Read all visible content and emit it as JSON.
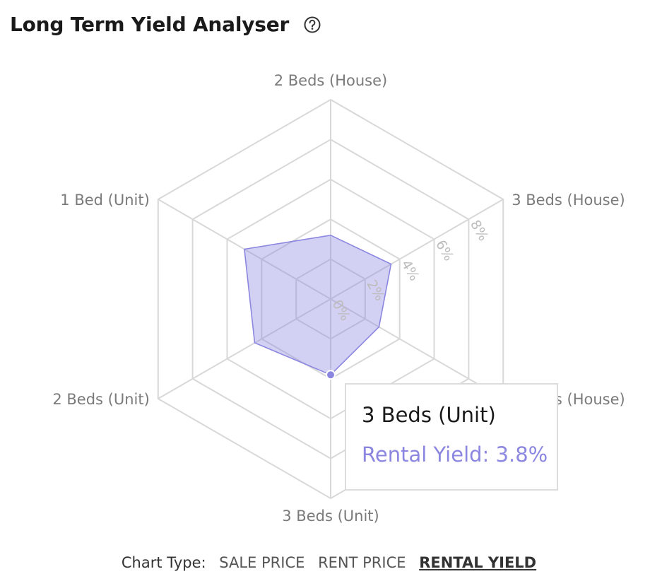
{
  "header": {
    "title": "Long Term Yield Analyser",
    "help_icon": "question-circle-icon"
  },
  "chart_data": {
    "type": "radar",
    "axes": [
      "2 Beds (House)",
      "3 Beds (House)",
      "4 Beds (House)",
      "3 Beds (Unit)",
      "2 Beds (Unit)",
      "1 Bed (Unit)"
    ],
    "series": [
      {
        "values": [
          3.2,
          3.5,
          2.8,
          3.8,
          4.4,
          5.0
        ],
        "color": "#8b86e0"
      }
    ],
    "radial_ticks": [
      "0%",
      "2%",
      "4%",
      "6%",
      "8%"
    ],
    "range": [
      0,
      10
    ],
    "grid": true
  },
  "tooltip": {
    "title": "3 Beds (Unit)",
    "value": "Rental Yield: 3.8%"
  },
  "chart_type": {
    "label": "Chart Type:",
    "options": [
      "SALE PRICE",
      "RENT PRICE",
      "RENTAL YIELD"
    ],
    "active": "RENTAL YIELD"
  }
}
